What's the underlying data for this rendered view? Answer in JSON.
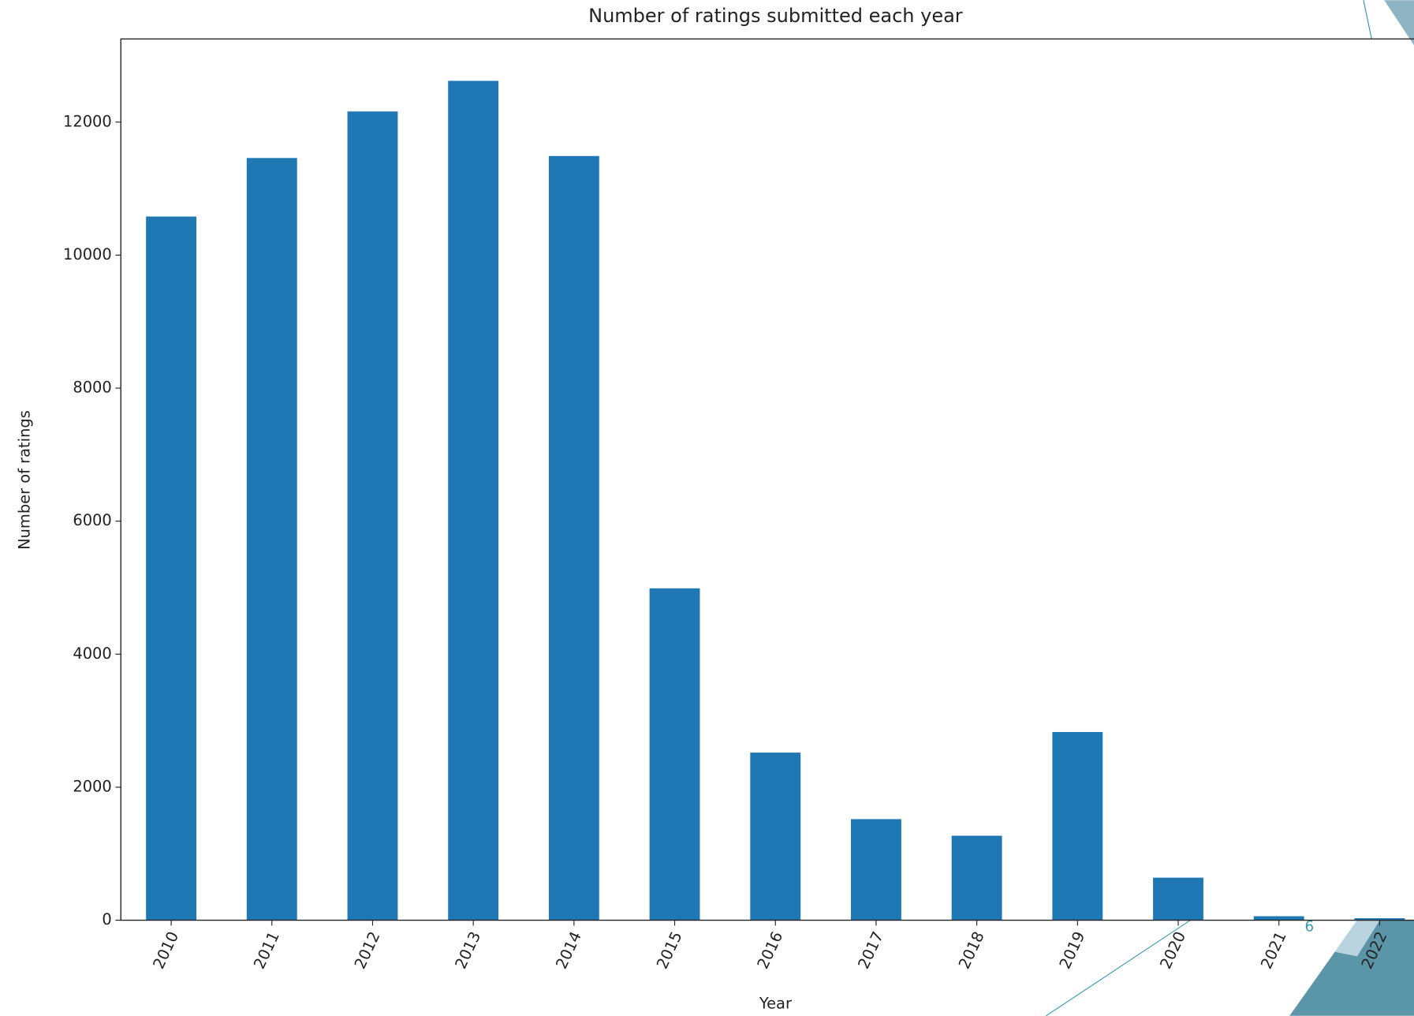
{
  "chart_data": {
    "type": "bar",
    "title": "Number of ratings submitted each year",
    "x_label": "Year",
    "y_label": "Number of ratings",
    "categories": [
      "2010",
      "2011",
      "2012",
      "2013",
      "2014",
      "2015",
      "2016",
      "2017",
      "2018",
      "2019",
      "2020",
      "2021",
      "2022"
    ],
    "values": [
      10580,
      11460,
      12160,
      12620,
      11490,
      4990,
      2520,
      1520,
      1270,
      2830,
      640,
      60,
      30
    ],
    "color": "#1f77b4",
    "ylim": [
      0,
      13250
    ],
    "yticks": [
      0,
      2000,
      4000,
      6000,
      8000,
      10000,
      12000
    ],
    "grid": false
  },
  "page_number": "6"
}
